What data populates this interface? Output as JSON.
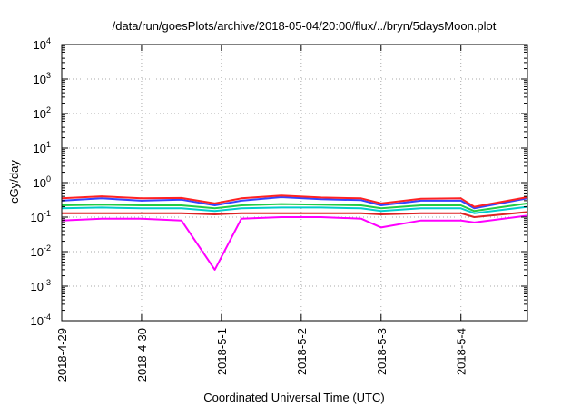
{
  "chart_data": {
    "type": "line",
    "title": "/data/run/goesPlots/archive/2018-05-04/20:00/flux/../bryn/5daysMoon.plot",
    "xlabel": "Coordinated Universal Time (UTC)",
    "ylabel": "cGy/day",
    "y_scale": "log",
    "ylim": [
      0.0001,
      10000
    ],
    "y_ticks": [
      {
        "base": "10",
        "exp": "-4"
      },
      {
        "base": "10",
        "exp": "-3"
      },
      {
        "base": "10",
        "exp": "-2"
      },
      {
        "base": "10",
        "exp": "-1"
      },
      {
        "base": "10",
        "exp": "0"
      },
      {
        "base": "10",
        "exp": "1"
      },
      {
        "base": "10",
        "exp": "2"
      },
      {
        "base": "10",
        "exp": "3"
      },
      {
        "base": "10",
        "exp": "4"
      }
    ],
    "x_start": "2018-04-29",
    "x_end": "2018-05-04T20:00",
    "x_tick_labels": [
      "2018-4-29",
      "2018-4-30",
      "2018-5-1",
      "2018-5-2",
      "2018-5-3",
      "2018-5-4"
    ],
    "grid": true,
    "series_colors": [
      "#ff00ff",
      "#dd2222",
      "#00cccc",
      "#22cc44",
      "#3344ff",
      "#ff2222"
    ],
    "series": [
      {
        "color": "#ff00ff",
        "points": [
          [
            "2018-04-29T00:00",
            0.08
          ],
          [
            "2018-04-29T12:00",
            0.09
          ],
          [
            "2018-04-30T00:00",
            0.09
          ],
          [
            "2018-04-30T12:00",
            0.08
          ],
          [
            "2018-04-30T22:00",
            0.003
          ],
          [
            "2018-05-01T06:00",
            0.09
          ],
          [
            "2018-05-01T18:00",
            0.1
          ],
          [
            "2018-05-02T06:00",
            0.1
          ],
          [
            "2018-05-02T18:00",
            0.09
          ],
          [
            "2018-05-03T00:00",
            0.05
          ],
          [
            "2018-05-03T12:00",
            0.08
          ],
          [
            "2018-05-04T00:00",
            0.08
          ],
          [
            "2018-05-04T04:00",
            0.07
          ],
          [
            "2018-05-04T20:00",
            0.11
          ]
        ]
      },
      {
        "color": "#dd2222",
        "points": [
          [
            "2018-04-29T00:00",
            0.13
          ],
          [
            "2018-04-29T12:00",
            0.13
          ],
          [
            "2018-04-30T00:00",
            0.13
          ],
          [
            "2018-04-30T12:00",
            0.13
          ],
          [
            "2018-04-30T22:00",
            0.12
          ],
          [
            "2018-05-01T06:00",
            0.13
          ],
          [
            "2018-05-01T18:00",
            0.13
          ],
          [
            "2018-05-02T06:00",
            0.13
          ],
          [
            "2018-05-02T18:00",
            0.13
          ],
          [
            "2018-05-03T00:00",
            0.12
          ],
          [
            "2018-05-03T12:00",
            0.13
          ],
          [
            "2018-05-04T00:00",
            0.13
          ],
          [
            "2018-05-04T04:00",
            0.1
          ],
          [
            "2018-05-04T20:00",
            0.14
          ]
        ]
      },
      {
        "color": "#00cccc",
        "points": [
          [
            "2018-04-29T00:00",
            0.18
          ],
          [
            "2018-04-29T12:00",
            0.19
          ],
          [
            "2018-04-30T00:00",
            0.18
          ],
          [
            "2018-04-30T12:00",
            0.18
          ],
          [
            "2018-04-30T22:00",
            0.15
          ],
          [
            "2018-05-01T06:00",
            0.18
          ],
          [
            "2018-05-01T18:00",
            0.19
          ],
          [
            "2018-05-02T06:00",
            0.19
          ],
          [
            "2018-05-02T18:00",
            0.18
          ],
          [
            "2018-05-03T00:00",
            0.15
          ],
          [
            "2018-05-03T12:00",
            0.18
          ],
          [
            "2018-05-04T00:00",
            0.18
          ],
          [
            "2018-05-04T04:00",
            0.13
          ],
          [
            "2018-05-04T20:00",
            0.2
          ]
        ]
      },
      {
        "color": "#22cc44",
        "points": [
          [
            "2018-04-29T00:00",
            0.22
          ],
          [
            "2018-04-29T12:00",
            0.23
          ],
          [
            "2018-04-30T00:00",
            0.22
          ],
          [
            "2018-04-30T12:00",
            0.22
          ],
          [
            "2018-04-30T22:00",
            0.18
          ],
          [
            "2018-05-01T06:00",
            0.22
          ],
          [
            "2018-05-01T18:00",
            0.24
          ],
          [
            "2018-05-02T06:00",
            0.23
          ],
          [
            "2018-05-02T18:00",
            0.22
          ],
          [
            "2018-05-03T00:00",
            0.18
          ],
          [
            "2018-05-03T12:00",
            0.22
          ],
          [
            "2018-05-04T00:00",
            0.22
          ],
          [
            "2018-05-04T04:00",
            0.15
          ],
          [
            "2018-05-04T20:00",
            0.25
          ]
        ]
      },
      {
        "color": "#3344ff",
        "points": [
          [
            "2018-04-29T00:00",
            0.3
          ],
          [
            "2018-04-29T12:00",
            0.35
          ],
          [
            "2018-04-30T00:00",
            0.3
          ],
          [
            "2018-04-30T12:00",
            0.32
          ],
          [
            "2018-04-30T22:00",
            0.22
          ],
          [
            "2018-05-01T06:00",
            0.3
          ],
          [
            "2018-05-01T18:00",
            0.38
          ],
          [
            "2018-05-02T06:00",
            0.33
          ],
          [
            "2018-05-02T18:00",
            0.31
          ],
          [
            "2018-05-03T00:00",
            0.22
          ],
          [
            "2018-05-03T12:00",
            0.3
          ],
          [
            "2018-05-04T00:00",
            0.3
          ],
          [
            "2018-05-04T04:00",
            0.18
          ],
          [
            "2018-05-04T20:00",
            0.35
          ]
        ]
      },
      {
        "color": "#ff2222",
        "points": [
          [
            "2018-04-29T00:00",
            0.35
          ],
          [
            "2018-04-29T12:00",
            0.4
          ],
          [
            "2018-04-30T00:00",
            0.35
          ],
          [
            "2018-04-30T12:00",
            0.36
          ],
          [
            "2018-04-30T22:00",
            0.25
          ],
          [
            "2018-05-01T06:00",
            0.35
          ],
          [
            "2018-05-01T18:00",
            0.42
          ],
          [
            "2018-05-02T06:00",
            0.37
          ],
          [
            "2018-05-02T18:00",
            0.35
          ],
          [
            "2018-05-03T00:00",
            0.25
          ],
          [
            "2018-05-03T12:00",
            0.34
          ],
          [
            "2018-05-04T00:00",
            0.35
          ],
          [
            "2018-05-04T04:00",
            0.2
          ],
          [
            "2018-05-04T20:00",
            0.38
          ]
        ]
      }
    ]
  }
}
